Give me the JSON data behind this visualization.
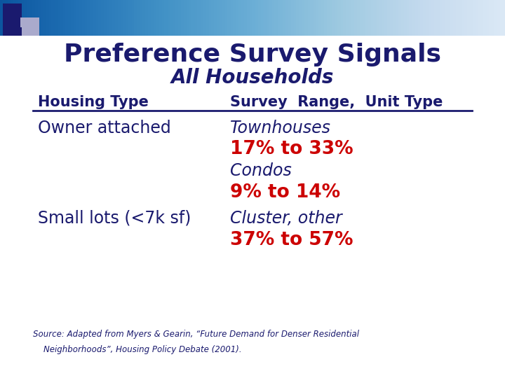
{
  "title": "Preference Survey Signals",
  "subtitle": "All Households",
  "col1_header": "Housing Type",
  "col2_header": "Survey  Range,  Unit Type",
  "row1_left": "Owner attached",
  "row1_right1": "Townhouses",
  "row1_right2": "17% to 33%",
  "row1_right3": "Condos",
  "row1_right4": "9% to 14%",
  "row2_left": "Small lots (<7k sf)",
  "row2_right1": "Cluster, other",
  "row2_right2": "37% to 57%",
  "source_line1": "Source: Adapted from Myers & Gearin, “Future Demand for Denser Residential",
  "source_line2": "    Neighborhoods”, Housing Policy Debate (2001).",
  "bg_color": "#ffffff",
  "title_color": "#1a1a6e",
  "subtitle_color": "#1a1a6e",
  "header_color": "#1a1a6e",
  "left_text_color": "#1a1a6e",
  "italic_text_color": "#1a1a6e",
  "red_text_color": "#cc0000",
  "source_color": "#1a1a6e",
  "dark_blue": "#1a1a6e",
  "mid_blue": "#7070a0",
  "light_blue": "#aaaacc",
  "grad_color": "#8888aa"
}
